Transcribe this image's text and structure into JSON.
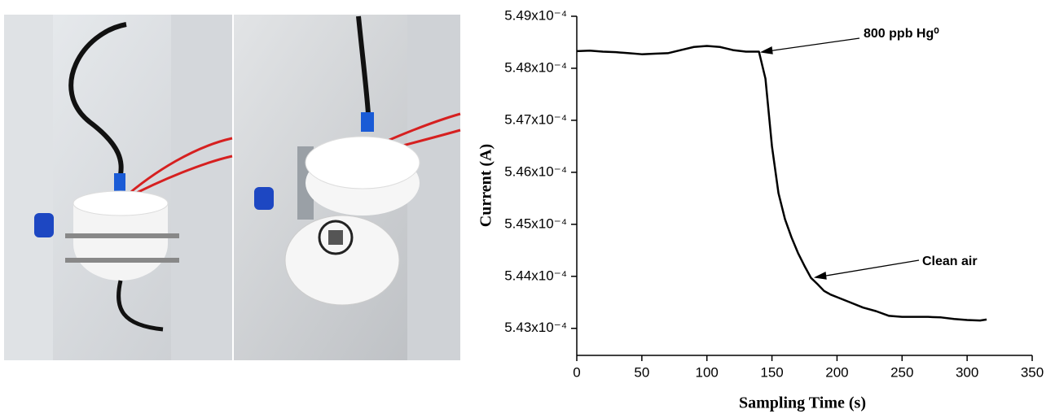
{
  "chart_data": {
    "type": "line",
    "x_label": "Sampling Time (s)",
    "y_label": "Current (A)",
    "annotations": [
      "800 ppb Hg⁰",
      "Clean air"
    ],
    "x": [
      0,
      10,
      20,
      30,
      40,
      50,
      60,
      70,
      80,
      90,
      100,
      110,
      120,
      130,
      140,
      145,
      150,
      155,
      160,
      165,
      170,
      175,
      180,
      185,
      190,
      195,
      200,
      210,
      220,
      230,
      240,
      250,
      260,
      270,
      280,
      290,
      300,
      310,
      315
    ],
    "series": [
      {
        "color": "#000000",
        "values": [
          0.00054833,
          0.00054834,
          0.00054832,
          0.00054831,
          0.00054829,
          0.00054827,
          0.00054828,
          0.00054829,
          0.00054835,
          0.00054841,
          0.00054843,
          0.00054841,
          0.00054835,
          0.00054832,
          0.00054832,
          0.0005478,
          0.0005465,
          0.0005456,
          0.0005451,
          0.00054475,
          0.00054445,
          0.0005442,
          0.00054397,
          0.00054385,
          0.00054372,
          0.00054365,
          0.0005436,
          0.0005435,
          0.0005434,
          0.00054333,
          0.00054324,
          0.00054322,
          0.00054322,
          0.00054322,
          0.00054321,
          0.00054318,
          0.00054316,
          0.00054315,
          0.00054317
        ]
      }
    ],
    "xlim": [
      0,
      350
    ],
    "xticks": [
      0,
      50,
      100,
      150,
      200,
      250,
      300,
      350
    ],
    "ylim": [
      0.00054248,
      0.000549
    ],
    "yticks": [
      {
        "value": 0.000543,
        "label": "5.43x10⁻⁴"
      },
      {
        "value": 0.000544,
        "label": "5.44x10⁻⁴"
      },
      {
        "value": 0.000545,
        "label": "5.45x10⁻⁴"
      },
      {
        "value": 0.000546,
        "label": "5.46x10⁻⁴"
      },
      {
        "value": 0.000547,
        "label": "5.47x10⁻⁴"
      },
      {
        "value": 0.000548,
        "label": "5.48x10⁻⁴"
      },
      {
        "value": 0.000549,
        "label": "5.49x10⁻⁴"
      }
    ]
  }
}
